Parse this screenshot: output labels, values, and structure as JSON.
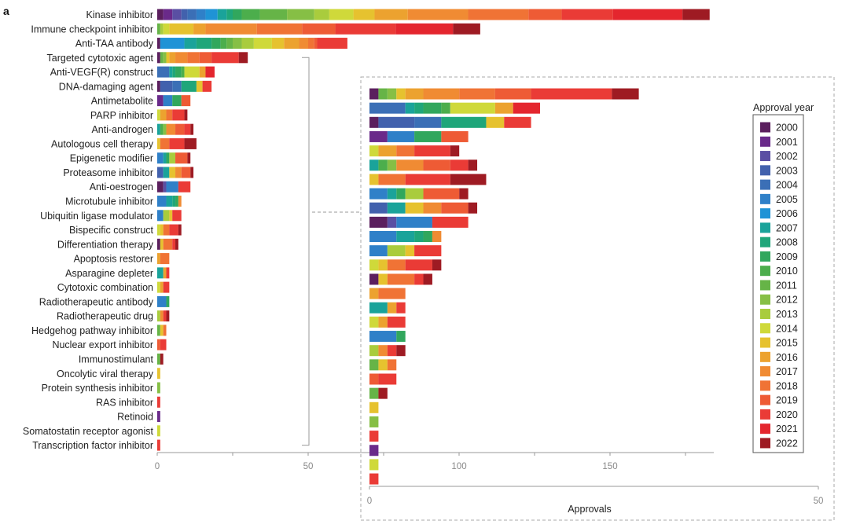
{
  "panel_label": "a",
  "chart_data": {
    "type": "bar",
    "orientation": "horizontal",
    "stacked": true,
    "xlabel": "Approvals",
    "legend": {
      "title": "Approval year",
      "placement": "right",
      "years": [
        "2000",
        "2001",
        "2002",
        "2003",
        "2004",
        "2005",
        "2006",
        "2007",
        "2008",
        "2009",
        "2010",
        "2011",
        "2012",
        "2013",
        "2014",
        "2015",
        "2016",
        "2017",
        "2018",
        "2019",
        "2020",
        "2021",
        "2022"
      ],
      "colors": [
        "#5b1f5e",
        "#6a2a8a",
        "#5a4fa3",
        "#4261ad",
        "#3b6fb6",
        "#2f80c8",
        "#1f93d6",
        "#1aa39a",
        "#1fa67a",
        "#31a75d",
        "#4cae4c",
        "#66b447",
        "#86bf45",
        "#a9cc3d",
        "#cfd93a",
        "#e6c22f",
        "#eca22f",
        "#f08b33",
        "#f07335",
        "#ee5b35",
        "#ea3b36",
        "#e4262e",
        "#9e1b23"
      ]
    },
    "main": {
      "xlim": [
        0,
        180
      ],
      "xticks": [
        0,
        50,
        100,
        150
      ],
      "xtick_labels": [
        "0",
        "50",
        "100",
        "150"
      ],
      "categories": [
        "Kinase inhibitor",
        "Immune checkpoint inhibitor",
        "Anti-TAA antibody",
        "Targeted cytotoxic agent",
        "Anti-VEGF(R) construct",
        "DNA-damaging agent",
        "Antimetabolite",
        "PARP inhibitor",
        "Anti-androgen",
        "Autologous cell therapy",
        "Epigenetic modifier",
        "Proteasome inhibitor",
        "Anti-oestrogen",
        "Microtubule inhibitor",
        "Ubiquitin ligase modulator",
        "Bispecific construct",
        "Differentiation therapy",
        "Apoptosis restorer",
        "Asparagine depleter",
        "Cytotoxic combination",
        "Radiotherapeutic antibody",
        "Radiotherapeutic drug",
        "Hedgehog pathway inhibitor",
        "Nuclear export inhibitor",
        "Immunostimulant",
        "Oncolytic viral therapy",
        "Protein synthesis inhibitor",
        "RAS inhibitor",
        "Retinoid",
        "Somatostatin receptor agonist",
        "Transcription factor inhibitor"
      ],
      "counts": [
        [
          2,
          3,
          3,
          2,
          3,
          3,
          4,
          3,
          2,
          3,
          6,
          9,
          9,
          5,
          8,
          7,
          11,
          20,
          20,
          11,
          17,
          23,
          9
        ],
        [
          0,
          0,
          0,
          0,
          0,
          0,
          0,
          0,
          0,
          0,
          0,
          1,
          0,
          1,
          2,
          8,
          4,
          17,
          15,
          11,
          20,
          19,
          9
        ],
        [
          1,
          0,
          0,
          0,
          0,
          0,
          8,
          4,
          5,
          3,
          2,
          2,
          3,
          4,
          6,
          4,
          5,
          3,
          2,
          1,
          10,
          0,
          0
        ],
        [
          1,
          0,
          0,
          0,
          0,
          0,
          0,
          0,
          0,
          0,
          0,
          1,
          1,
          0,
          0,
          1,
          2,
          4,
          4,
          4,
          9,
          0,
          3
        ],
        [
          0,
          0,
          0,
          0,
          4,
          0,
          0,
          1,
          1,
          2,
          1,
          0,
          0,
          0,
          5,
          0,
          2,
          0,
          0,
          0,
          0,
          3,
          0
        ],
        [
          1,
          0,
          0,
          4,
          3,
          0,
          0,
          0,
          5,
          0,
          0,
          0,
          0,
          0,
          0,
          2,
          0,
          0,
          0,
          0,
          3,
          0,
          0
        ],
        [
          0,
          2,
          0,
          0,
          0,
          3,
          0,
          0,
          0,
          3,
          0,
          0,
          0,
          0,
          0,
          0,
          0,
          0,
          0,
          3,
          0,
          0,
          0
        ],
        [
          0,
          0,
          0,
          0,
          0,
          0,
          0,
          0,
          0,
          0,
          0,
          0,
          0,
          0,
          1,
          0,
          2,
          0,
          2,
          0,
          4,
          0,
          1
        ],
        [
          0,
          0,
          0,
          0,
          0,
          0,
          0,
          1,
          0,
          0,
          1,
          0,
          1,
          0,
          0,
          0,
          0,
          3,
          0,
          3,
          2,
          0,
          1
        ],
        [
          0,
          0,
          0,
          0,
          0,
          0,
          0,
          0,
          0,
          0,
          0,
          0,
          0,
          0,
          0,
          1,
          0,
          0,
          3,
          0,
          5,
          0,
          4
        ],
        [
          0,
          0,
          0,
          0,
          0,
          2,
          0,
          1,
          0,
          1,
          0,
          0,
          0,
          2,
          0,
          0,
          0,
          0,
          0,
          4,
          0,
          0,
          1
        ],
        [
          0,
          0,
          0,
          2,
          0,
          0,
          0,
          2,
          0,
          0,
          0,
          0,
          0,
          0,
          0,
          2,
          0,
          2,
          0,
          3,
          0,
          0,
          1
        ],
        [
          2,
          0,
          1,
          0,
          0,
          4,
          0,
          0,
          0,
          0,
          0,
          0,
          0,
          0,
          0,
          0,
          0,
          0,
          0,
          0,
          4,
          0,
          0
        ],
        [
          0,
          0,
          0,
          0,
          0,
          3,
          0,
          2,
          1,
          1,
          0,
          0,
          0,
          0,
          0,
          0,
          0,
          1,
          0,
          0,
          0,
          0,
          0
        ],
        [
          0,
          0,
          0,
          0,
          0,
          2,
          0,
          0,
          0,
          0,
          0,
          0,
          0,
          2,
          0,
          1,
          0,
          0,
          0,
          0,
          3,
          0,
          0
        ],
        [
          0,
          0,
          0,
          0,
          0,
          0,
          0,
          0,
          0,
          0,
          0,
          0,
          0,
          0,
          1,
          1,
          0,
          0,
          2,
          0,
          3,
          0,
          1
        ],
        [
          1,
          0,
          0,
          0,
          0,
          0,
          0,
          0,
          0,
          0,
          0,
          0,
          0,
          0,
          0,
          1,
          0,
          0,
          3,
          0,
          1,
          0,
          1
        ],
        [
          0,
          0,
          0,
          0,
          0,
          0,
          0,
          0,
          0,
          0,
          0,
          0,
          0,
          0,
          0,
          0,
          1,
          0,
          3,
          0,
          0,
          0,
          0
        ],
        [
          0,
          0,
          0,
          0,
          0,
          0,
          0,
          2,
          0,
          0,
          0,
          0,
          0,
          0,
          0,
          0,
          1,
          0,
          0,
          0,
          1,
          0,
          0
        ],
        [
          0,
          0,
          0,
          0,
          0,
          0,
          0,
          0,
          0,
          0,
          0,
          0,
          0,
          0,
          1,
          0,
          1,
          0,
          0,
          0,
          2,
          0,
          0
        ],
        [
          0,
          0,
          0,
          0,
          0,
          3,
          0,
          0,
          0,
          1,
          0,
          0,
          0,
          0,
          0,
          0,
          0,
          0,
          0,
          0,
          0,
          0,
          0
        ],
        [
          0,
          0,
          0,
          0,
          0,
          0,
          0,
          0,
          0,
          0,
          0,
          0,
          0,
          1,
          0,
          0,
          0,
          1,
          0,
          0,
          1,
          0,
          1
        ],
        [
          0,
          0,
          0,
          0,
          0,
          0,
          0,
          0,
          0,
          0,
          0,
          1,
          0,
          0,
          0,
          1,
          0,
          0,
          1,
          0,
          0,
          0,
          0
        ],
        [
          0,
          0,
          0,
          0,
          0,
          0,
          0,
          0,
          0,
          0,
          0,
          0,
          0,
          0,
          0,
          0,
          0,
          0,
          0,
          1,
          2,
          0,
          0
        ],
        [
          0,
          0,
          0,
          0,
          0,
          0,
          0,
          0,
          0,
          0,
          0,
          1,
          0,
          0,
          0,
          0,
          0,
          0,
          0,
          0,
          0,
          0,
          1
        ],
        [
          0,
          0,
          0,
          0,
          0,
          0,
          0,
          0,
          0,
          0,
          0,
          0,
          0,
          0,
          0,
          1,
          0,
          0,
          0,
          0,
          0,
          0,
          0
        ],
        [
          0,
          0,
          0,
          0,
          0,
          0,
          0,
          0,
          0,
          0,
          0,
          0,
          1,
          0,
          0,
          0,
          0,
          0,
          0,
          0,
          0,
          0,
          0
        ],
        [
          0,
          0,
          0,
          0,
          0,
          0,
          0,
          0,
          0,
          0,
          0,
          0,
          0,
          0,
          0,
          0,
          0,
          0,
          0,
          0,
          1,
          0,
          0
        ],
        [
          0,
          1,
          0,
          0,
          0,
          0,
          0,
          0,
          0,
          0,
          0,
          0,
          0,
          0,
          0,
          0,
          0,
          0,
          0,
          0,
          0,
          0,
          0
        ],
        [
          0,
          0,
          0,
          0,
          0,
          0,
          0,
          0,
          0,
          0,
          0,
          0,
          0,
          0,
          1,
          0,
          0,
          0,
          0,
          0,
          0,
          0,
          0
        ],
        [
          0,
          0,
          0,
          0,
          0,
          0,
          0,
          0,
          0,
          0,
          0,
          0,
          0,
          0,
          0,
          0,
          0,
          0,
          0,
          0,
          1,
          0,
          0
        ]
      ]
    },
    "inset": {
      "xlim": [
        0,
        50
      ],
      "xticks": [
        0,
        50
      ],
      "xtick_labels": [
        "0",
        "50"
      ],
      "note": "zoomed view of rows Targeted cytotoxic agent through Transcription factor inhibitor"
    }
  }
}
